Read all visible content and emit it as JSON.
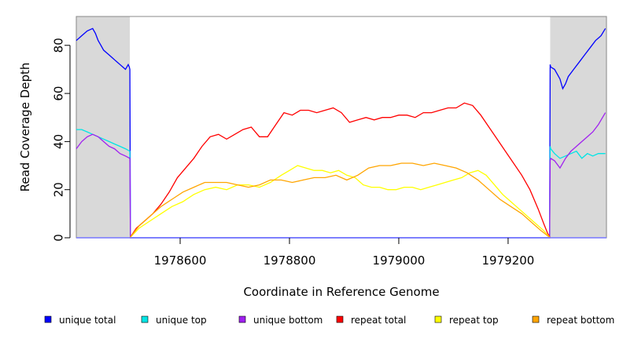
{
  "chart_data": {
    "type": "line",
    "title": "",
    "xlabel": "Coordinate in Reference Genome",
    "ylabel": "Read Coverage Depth",
    "xlim": [
      1978410,
      1979380
    ],
    "ylim": [
      0,
      92
    ],
    "x_ticks": [
      1978600,
      1978800,
      1979000,
      1979200
    ],
    "x_tick_labels": [
      "1978600",
      "1978800",
      "1979000",
      "1979200"
    ],
    "y_ticks": [
      0,
      20,
      40,
      60,
      80
    ],
    "y_tick_labels": [
      "0",
      "20",
      "40",
      "60",
      "80"
    ],
    "grid": false,
    "shaded_regions": [
      [
        1978410,
        1978508
      ],
      [
        1979277,
        1979380
      ]
    ],
    "legend_position": "bottom",
    "series": [
      {
        "name": "unique total",
        "color": "#0000ff",
        "x": [
          1978410,
          1978420,
          1978430,
          1978440,
          1978445,
          1978450,
          1978455,
          1978460,
          1978465,
          1978470,
          1978475,
          1978480,
          1978485,
          1978490,
          1978495,
          1978500,
          1978505,
          1978507,
          1978508,
          1978509,
          1979276,
          1979277,
          1979278,
          1979285,
          1979290,
          1979295,
          1979300,
          1979305,
          1979310,
          1979320,
          1979330,
          1979340,
          1979350,
          1979360,
          1979370,
          1979378
        ],
        "y": [
          82,
          84,
          86,
          87,
          85,
          82,
          80,
          78,
          77,
          76,
          75,
          74,
          73,
          72,
          71,
          70,
          72,
          71,
          70,
          0,
          0,
          72,
          71,
          70,
          68,
          66,
          62,
          64,
          67,
          70,
          73,
          76,
          79,
          82,
          84,
          87
        ]
      },
      {
        "name": "unique top",
        "color": "#00e5e5",
        "x": [
          1978410,
          1978420,
          1978430,
          1978440,
          1978450,
          1978460,
          1978470,
          1978480,
          1978490,
          1978500,
          1978508,
          1978509,
          1979276,
          1979277,
          1979278,
          1979285,
          1979295,
          1979305,
          1979315,
          1979325,
          1979335,
          1979345,
          1979355,
          1979365,
          1979378
        ],
        "y": [
          45,
          45,
          44,
          43,
          42,
          41,
          40,
          39,
          38,
          37,
          36,
          0,
          0,
          38,
          37,
          35,
          33,
          34,
          35,
          36,
          33,
          35,
          34,
          35,
          35
        ]
      },
      {
        "name": "unique bottom",
        "color": "#a020f0",
        "x": [
          1978410,
          1978420,
          1978430,
          1978440,
          1978450,
          1978460,
          1978470,
          1978480,
          1978490,
          1978500,
          1978508,
          1978509,
          1979276,
          1979277,
          1979278,
          1979285,
          1979295,
          1979305,
          1979315,
          1979325,
          1979335,
          1979345,
          1979355,
          1979365,
          1979378
        ],
        "y": [
          37,
          40,
          42,
          43,
          42,
          40,
          38,
          37,
          35,
          34,
          33,
          0,
          0,
          32,
          33,
          32,
          29,
          33,
          36,
          38,
          40,
          42,
          44,
          47,
          52
        ]
      },
      {
        "name": "repeat total",
        "color": "#ff0000",
        "x": [
          1978508,
          1978520,
          1978535,
          1978550,
          1978565,
          1978580,
          1978595,
          1978610,
          1978625,
          1978640,
          1978655,
          1978670,
          1978685,
          1978700,
          1978715,
          1978730,
          1978745,
          1978760,
          1978775,
          1978790,
          1978805,
          1978820,
          1978835,
          1978850,
          1978865,
          1978880,
          1978895,
          1978910,
          1978925,
          1978940,
          1978955,
          1978970,
          1978985,
          1979000,
          1979015,
          1979030,
          1979045,
          1979060,
          1979075,
          1979090,
          1979105,
          1979120,
          1979135,
          1979150,
          1979165,
          1979180,
          1979195,
          1979210,
          1979225,
          1979240,
          1979255,
          1979265,
          1979272,
          1979277
        ],
        "y": [
          0,
          4,
          7,
          10,
          14,
          19,
          25,
          29,
          33,
          38,
          42,
          43,
          41,
          43,
          45,
          46,
          42,
          42,
          47,
          52,
          51,
          53,
          53,
          52,
          53,
          54,
          52,
          48,
          49,
          50,
          49,
          50,
          50,
          51,
          51,
          50,
          52,
          52,
          53,
          54,
          54,
          56,
          55,
          51,
          46,
          41,
          36,
          31,
          26,
          20,
          12,
          6,
          2,
          0
        ]
      },
      {
        "name": "repeat top",
        "color": "#ffff00",
        "x": [
          1978508,
          1978525,
          1978545,
          1978565,
          1978585,
          1978605,
          1978625,
          1978645,
          1978665,
          1978685,
          1978705,
          1978725,
          1978745,
          1978765,
          1978785,
          1978800,
          1978815,
          1978830,
          1978845,
          1978860,
          1978875,
          1978890,
          1978905,
          1978920,
          1978935,
          1978950,
          1978965,
          1978980,
          1978995,
          1979010,
          1979025,
          1979040,
          1979055,
          1979070,
          1979085,
          1979100,
          1979115,
          1979130,
          1979145,
          1979160,
          1979175,
          1979190,
          1979205,
          1979220,
          1979235,
          1979250,
          1979265,
          1979277
        ],
        "y": [
          0,
          4,
          7,
          10,
          13,
          15,
          18,
          20,
          21,
          20,
          22,
          22,
          21,
          23,
          26,
          28,
          30,
          29,
          28,
          28,
          27,
          28,
          26,
          25,
          22,
          21,
          21,
          20,
          20,
          21,
          21,
          20,
          21,
          22,
          23,
          24,
          25,
          27,
          28,
          26,
          22,
          18,
          15,
          12,
          9,
          6,
          3,
          0
        ]
      },
      {
        "name": "repeat bottom",
        "color": "#ffa500",
        "x": [
          1978508,
          1978525,
          1978545,
          1978565,
          1978585,
          1978605,
          1978625,
          1978645,
          1978665,
          1978685,
          1978705,
          1978725,
          1978745,
          1978765,
          1978785,
          1978805,
          1978825,
          1978845,
          1978865,
          1978885,
          1978905,
          1978925,
          1978945,
          1978965,
          1978985,
          1979005,
          1979025,
          1979045,
          1979065,
          1979085,
          1979105,
          1979125,
          1979145,
          1979165,
          1979185,
          1979205,
          1979225,
          1979245,
          1979260,
          1979277
        ],
        "y": [
          0,
          5,
          9,
          13,
          16,
          19,
          21,
          23,
          23,
          23,
          22,
          21,
          22,
          24,
          24,
          23,
          24,
          25,
          25,
          26,
          24,
          26,
          29,
          30,
          30,
          31,
          31,
          30,
          31,
          30,
          29,
          27,
          24,
          20,
          16,
          13,
          10,
          6,
          3,
          0
        ]
      }
    ]
  }
}
